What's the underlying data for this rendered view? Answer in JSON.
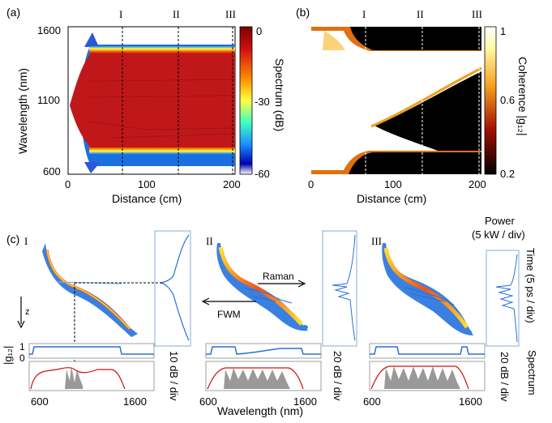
{
  "panel_a": {
    "label": "(a)",
    "ylabel": "Wavelength (nm)",
    "xlabel": "Distance (cm)",
    "yticks": [
      "1600",
      "1100",
      "600"
    ],
    "xticks": [
      "0",
      "100",
      "200"
    ],
    "markers": [
      "I",
      "II",
      "III"
    ],
    "colorbar_label": "Spectrum (dB)",
    "colorbar_ticks": [
      "0",
      "-30",
      "-60"
    ]
  },
  "panel_b": {
    "label": "(b)",
    "xlabel": "Distance (cm)",
    "xticks": [
      "0",
      "100",
      "200"
    ],
    "markers": [
      "I",
      "II",
      "III"
    ],
    "colorbar_label": "Coherence |g₁₂|",
    "colorbar_ticks": [
      "1",
      "0.6",
      "0.2"
    ]
  },
  "panel_c": {
    "label": "(c)",
    "subpanels": [
      "I",
      "II",
      "III"
    ],
    "z_label": "z",
    "g12_label": "|g₁₂|",
    "g12_ticks": [
      "1",
      "0"
    ],
    "raman_label": "Raman",
    "fwm_label": "FWM",
    "power_label": "Power",
    "power_scale": "(5 kW / div)",
    "time_label": "Time (5 ps / div)",
    "spectrum_label": "Spectrum",
    "scale_I": "10 dB / div",
    "scale_II": "20 dB / div",
    "scale_III": "20 dB / div",
    "xtick_low": "600",
    "xtick_high": "1600",
    "xlabel": "Wavelength (nm)"
  },
  "colors": {
    "spectrum_red": "#c0181a",
    "coherence_black": "#000000",
    "trace_blue": "#2a6fd6",
    "envelope_red": "#d01010"
  }
}
